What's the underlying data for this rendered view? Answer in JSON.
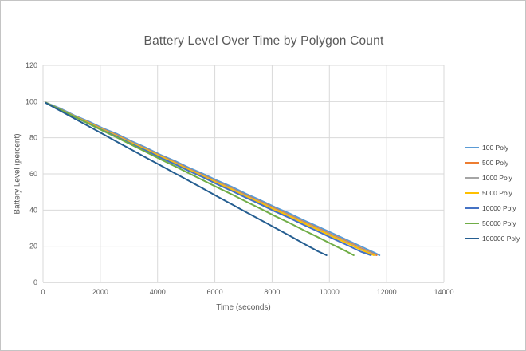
{
  "window": {
    "background": "#ffffff",
    "border_color": "#c4c4c4"
  },
  "chart_data": {
    "type": "line",
    "title": "Battery Level Over Time by Polygon Count",
    "xlabel": "Time (seconds)",
    "ylabel": "Battery Level (percent)",
    "xlim": [
      0,
      14000
    ],
    "ylim": [
      0,
      120
    ],
    "xticks": [
      0,
      2000,
      4000,
      6000,
      8000,
      10000,
      12000,
      14000
    ],
    "yticks": [
      0,
      20,
      40,
      60,
      80,
      100,
      120
    ],
    "grid": true,
    "legend_position": "right",
    "axis_text_color": "#595959",
    "gridline_color": "#d9d9d9",
    "axis_line_color": "#bfbfbf",
    "series": [
      {
        "name": "100 Poly",
        "color": "#5B9BD5",
        "points": [
          [
            100,
            99.5
          ],
          [
            600,
            96.2
          ],
          [
            1100,
            92.3
          ],
          [
            1600,
            89.0
          ],
          [
            2100,
            85.2
          ],
          [
            2600,
            82.0
          ],
          [
            3100,
            78.0
          ],
          [
            3600,
            74.5
          ],
          [
            4100,
            70.6
          ],
          [
            4600,
            67.2
          ],
          [
            5100,
            63.4
          ],
          [
            5600,
            60.0
          ],
          [
            6100,
            56.2
          ],
          [
            6600,
            52.8
          ],
          [
            7100,
            48.9
          ],
          [
            7600,
            45.4
          ],
          [
            8100,
            41.6
          ],
          [
            8600,
            38.2
          ],
          [
            9100,
            34.4
          ],
          [
            9600,
            30.9
          ],
          [
            10100,
            27.2
          ],
          [
            10600,
            23.6
          ],
          [
            11100,
            19.9
          ],
          [
            11600,
            16.2
          ],
          [
            11750,
            15.0
          ]
        ]
      },
      {
        "name": "500 Poly",
        "color": "#ED7D31",
        "points": [
          [
            100,
            99.4
          ],
          [
            600,
            95.8
          ],
          [
            1100,
            92.0
          ],
          [
            1600,
            88.4
          ],
          [
            2100,
            84.7
          ],
          [
            2600,
            81.3
          ],
          [
            3100,
            77.4
          ],
          [
            3600,
            73.9
          ],
          [
            4100,
            70.0
          ],
          [
            4600,
            66.5
          ],
          [
            5100,
            62.7
          ],
          [
            5600,
            59.2
          ],
          [
            6100,
            55.4
          ],
          [
            6600,
            51.9
          ],
          [
            7100,
            48.1
          ],
          [
            7600,
            44.6
          ],
          [
            8100,
            40.8
          ],
          [
            8600,
            37.3
          ],
          [
            9100,
            33.5
          ],
          [
            9600,
            30.0
          ],
          [
            10100,
            26.2
          ],
          [
            10600,
            22.7
          ],
          [
            11100,
            18.9
          ],
          [
            11650,
            15.0
          ]
        ]
      },
      {
        "name": "1000 Poly",
        "color": "#A5A5A5",
        "points": [
          [
            100,
            99.4
          ],
          [
            600,
            95.7
          ],
          [
            1100,
            91.9
          ],
          [
            1600,
            88.2
          ],
          [
            2100,
            84.5
          ],
          [
            2600,
            81.0
          ],
          [
            3100,
            77.2
          ],
          [
            3600,
            73.6
          ],
          [
            4100,
            69.8
          ],
          [
            4600,
            66.2
          ],
          [
            5100,
            62.4
          ],
          [
            5600,
            58.9
          ],
          [
            6100,
            55.1
          ],
          [
            6600,
            51.6
          ],
          [
            7100,
            47.7
          ],
          [
            7600,
            44.2
          ],
          [
            8100,
            40.4
          ],
          [
            8600,
            36.9
          ],
          [
            9100,
            33.1
          ],
          [
            9600,
            29.6
          ],
          [
            10100,
            25.8
          ],
          [
            10600,
            22.3
          ],
          [
            11100,
            18.5
          ],
          [
            11600,
            15.0
          ]
        ]
      },
      {
        "name": "5000 Poly",
        "color": "#FFC000",
        "points": [
          [
            100,
            99.3
          ],
          [
            600,
            95.6
          ],
          [
            1100,
            91.8
          ],
          [
            1600,
            88.1
          ],
          [
            2100,
            84.3
          ],
          [
            2600,
            80.8
          ],
          [
            3100,
            77.0
          ],
          [
            3600,
            73.4
          ],
          [
            4100,
            69.6
          ],
          [
            4600,
            66.0
          ],
          [
            5100,
            62.2
          ],
          [
            5600,
            58.6
          ],
          [
            6100,
            54.8
          ],
          [
            6600,
            51.3
          ],
          [
            7100,
            47.4
          ],
          [
            7600,
            43.9
          ],
          [
            8100,
            40.1
          ],
          [
            8600,
            36.6
          ],
          [
            9100,
            32.8
          ],
          [
            9600,
            29.2
          ],
          [
            10100,
            25.4
          ],
          [
            10600,
            21.9
          ],
          [
            11100,
            18.1
          ],
          [
            11550,
            15.0
          ]
        ]
      },
      {
        "name": "10000 Poly",
        "color": "#4472C4",
        "points": [
          [
            100,
            99.3
          ],
          [
            600,
            95.5
          ],
          [
            1100,
            91.6
          ],
          [
            1600,
            87.8
          ],
          [
            2100,
            84.0
          ],
          [
            2600,
            80.4
          ],
          [
            3100,
            76.5
          ],
          [
            3600,
            72.9
          ],
          [
            4100,
            69.0
          ],
          [
            4600,
            65.4
          ],
          [
            5100,
            61.6
          ],
          [
            5600,
            58.0
          ],
          [
            6100,
            54.1
          ],
          [
            6600,
            50.5
          ],
          [
            7100,
            46.7
          ],
          [
            7600,
            43.1
          ],
          [
            8100,
            39.2
          ],
          [
            8600,
            35.7
          ],
          [
            9100,
            31.8
          ],
          [
            9600,
            28.2
          ],
          [
            10100,
            24.4
          ],
          [
            10600,
            20.8
          ],
          [
            11100,
            17.0
          ],
          [
            11450,
            15.0
          ]
        ]
      },
      {
        "name": "50000 Poly",
        "color": "#70AD47",
        "points": [
          [
            100,
            99.4
          ],
          [
            600,
            95.6
          ],
          [
            1100,
            91.6
          ],
          [
            1600,
            87.7
          ],
          [
            2100,
            83.8
          ],
          [
            2600,
            80.0
          ],
          [
            3100,
            76.0
          ],
          [
            3600,
            72.1
          ],
          [
            4100,
            68.1
          ],
          [
            4600,
            64.3
          ],
          [
            5100,
            60.3
          ],
          [
            5600,
            56.4
          ],
          [
            6100,
            52.4
          ],
          [
            6600,
            48.6
          ],
          [
            7100,
            44.6
          ],
          [
            7600,
            40.7
          ],
          [
            8100,
            36.7
          ],
          [
            8600,
            32.9
          ],
          [
            9100,
            28.9
          ],
          [
            9600,
            25.0
          ],
          [
            10100,
            21.0
          ],
          [
            10600,
            17.1
          ],
          [
            10850,
            15.0
          ]
        ]
      },
      {
        "name": "100000 Poly",
        "color": "#255E91",
        "points": [
          [
            100,
            99.2
          ],
          [
            600,
            94.9
          ],
          [
            1100,
            90.6
          ],
          [
            1600,
            86.3
          ],
          [
            2100,
            82.0
          ],
          [
            2600,
            77.6
          ],
          [
            3100,
            73.3
          ],
          [
            3600,
            69.0
          ],
          [
            4100,
            64.7
          ],
          [
            4600,
            60.4
          ],
          [
            5100,
            56.1
          ],
          [
            5600,
            51.8
          ],
          [
            6100,
            47.4
          ],
          [
            6600,
            43.1
          ],
          [
            7100,
            38.8
          ],
          [
            7600,
            34.5
          ],
          [
            8100,
            30.2
          ],
          [
            8600,
            25.9
          ],
          [
            9100,
            21.5
          ],
          [
            9600,
            17.2
          ],
          [
            9900,
            15.0
          ]
        ]
      }
    ]
  }
}
